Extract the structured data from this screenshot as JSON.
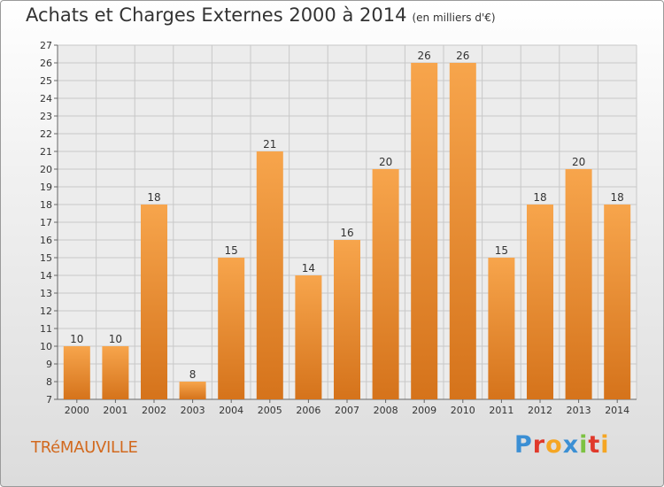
{
  "title": "Achats et Charges Externes 2000 à 2014",
  "unit_label": "(en milliers d'€)",
  "commune": "TRéMAUVILLE",
  "logo": {
    "letters": [
      "P",
      "r",
      "o",
      "x",
      "i",
      "t",
      "i"
    ],
    "colors": [
      "#3b8fd4",
      "#e0392b",
      "#f5a623",
      "#3b8fd4",
      "#7cc242",
      "#e0392b",
      "#f5a623"
    ]
  },
  "colors": {
    "bar_light": "#f7a54c",
    "bar_dark": "#d5731b",
    "grid": "#c8c8c8"
  },
  "chart_data": {
    "type": "bar",
    "categories": [
      "2000",
      "2001",
      "2002",
      "2003",
      "2004",
      "2005",
      "2006",
      "2007",
      "2008",
      "2009",
      "2010",
      "2011",
      "2012",
      "2013",
      "2014"
    ],
    "values": [
      10,
      10,
      18,
      8,
      15,
      21,
      14,
      16,
      20,
      26,
      26,
      15,
      18,
      20,
      18
    ],
    "data_labels": [
      "10",
      "10",
      "18",
      "8",
      "15",
      "21",
      "14",
      "16",
      "20",
      "26",
      "26",
      "15",
      "18",
      "20",
      "18"
    ],
    "ylim": [
      7,
      27
    ],
    "yticks": [
      "7",
      "8",
      "9",
      "10",
      "11",
      "12",
      "13",
      "14",
      "15",
      "16",
      "17",
      "18",
      "19",
      "20",
      "21",
      "22",
      "23",
      "24",
      "25",
      "26",
      "27"
    ],
    "grid": true
  }
}
